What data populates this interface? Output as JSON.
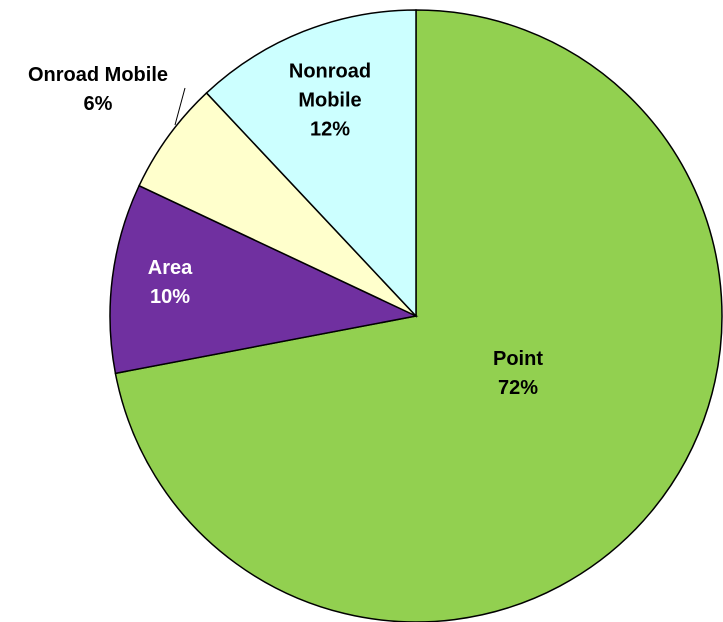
{
  "chart_data": {
    "type": "pie",
    "categories": [
      "Point",
      "Area",
      "Onroad Mobile",
      "Nonroad Mobile"
    ],
    "values": [
      72,
      10,
      6,
      12
    ],
    "value_labels": [
      "72%",
      "10%",
      "6%",
      "12%"
    ],
    "colors": [
      "#92d050",
      "#7030a0",
      "#ffffcc",
      "#ccffff"
    ]
  }
}
